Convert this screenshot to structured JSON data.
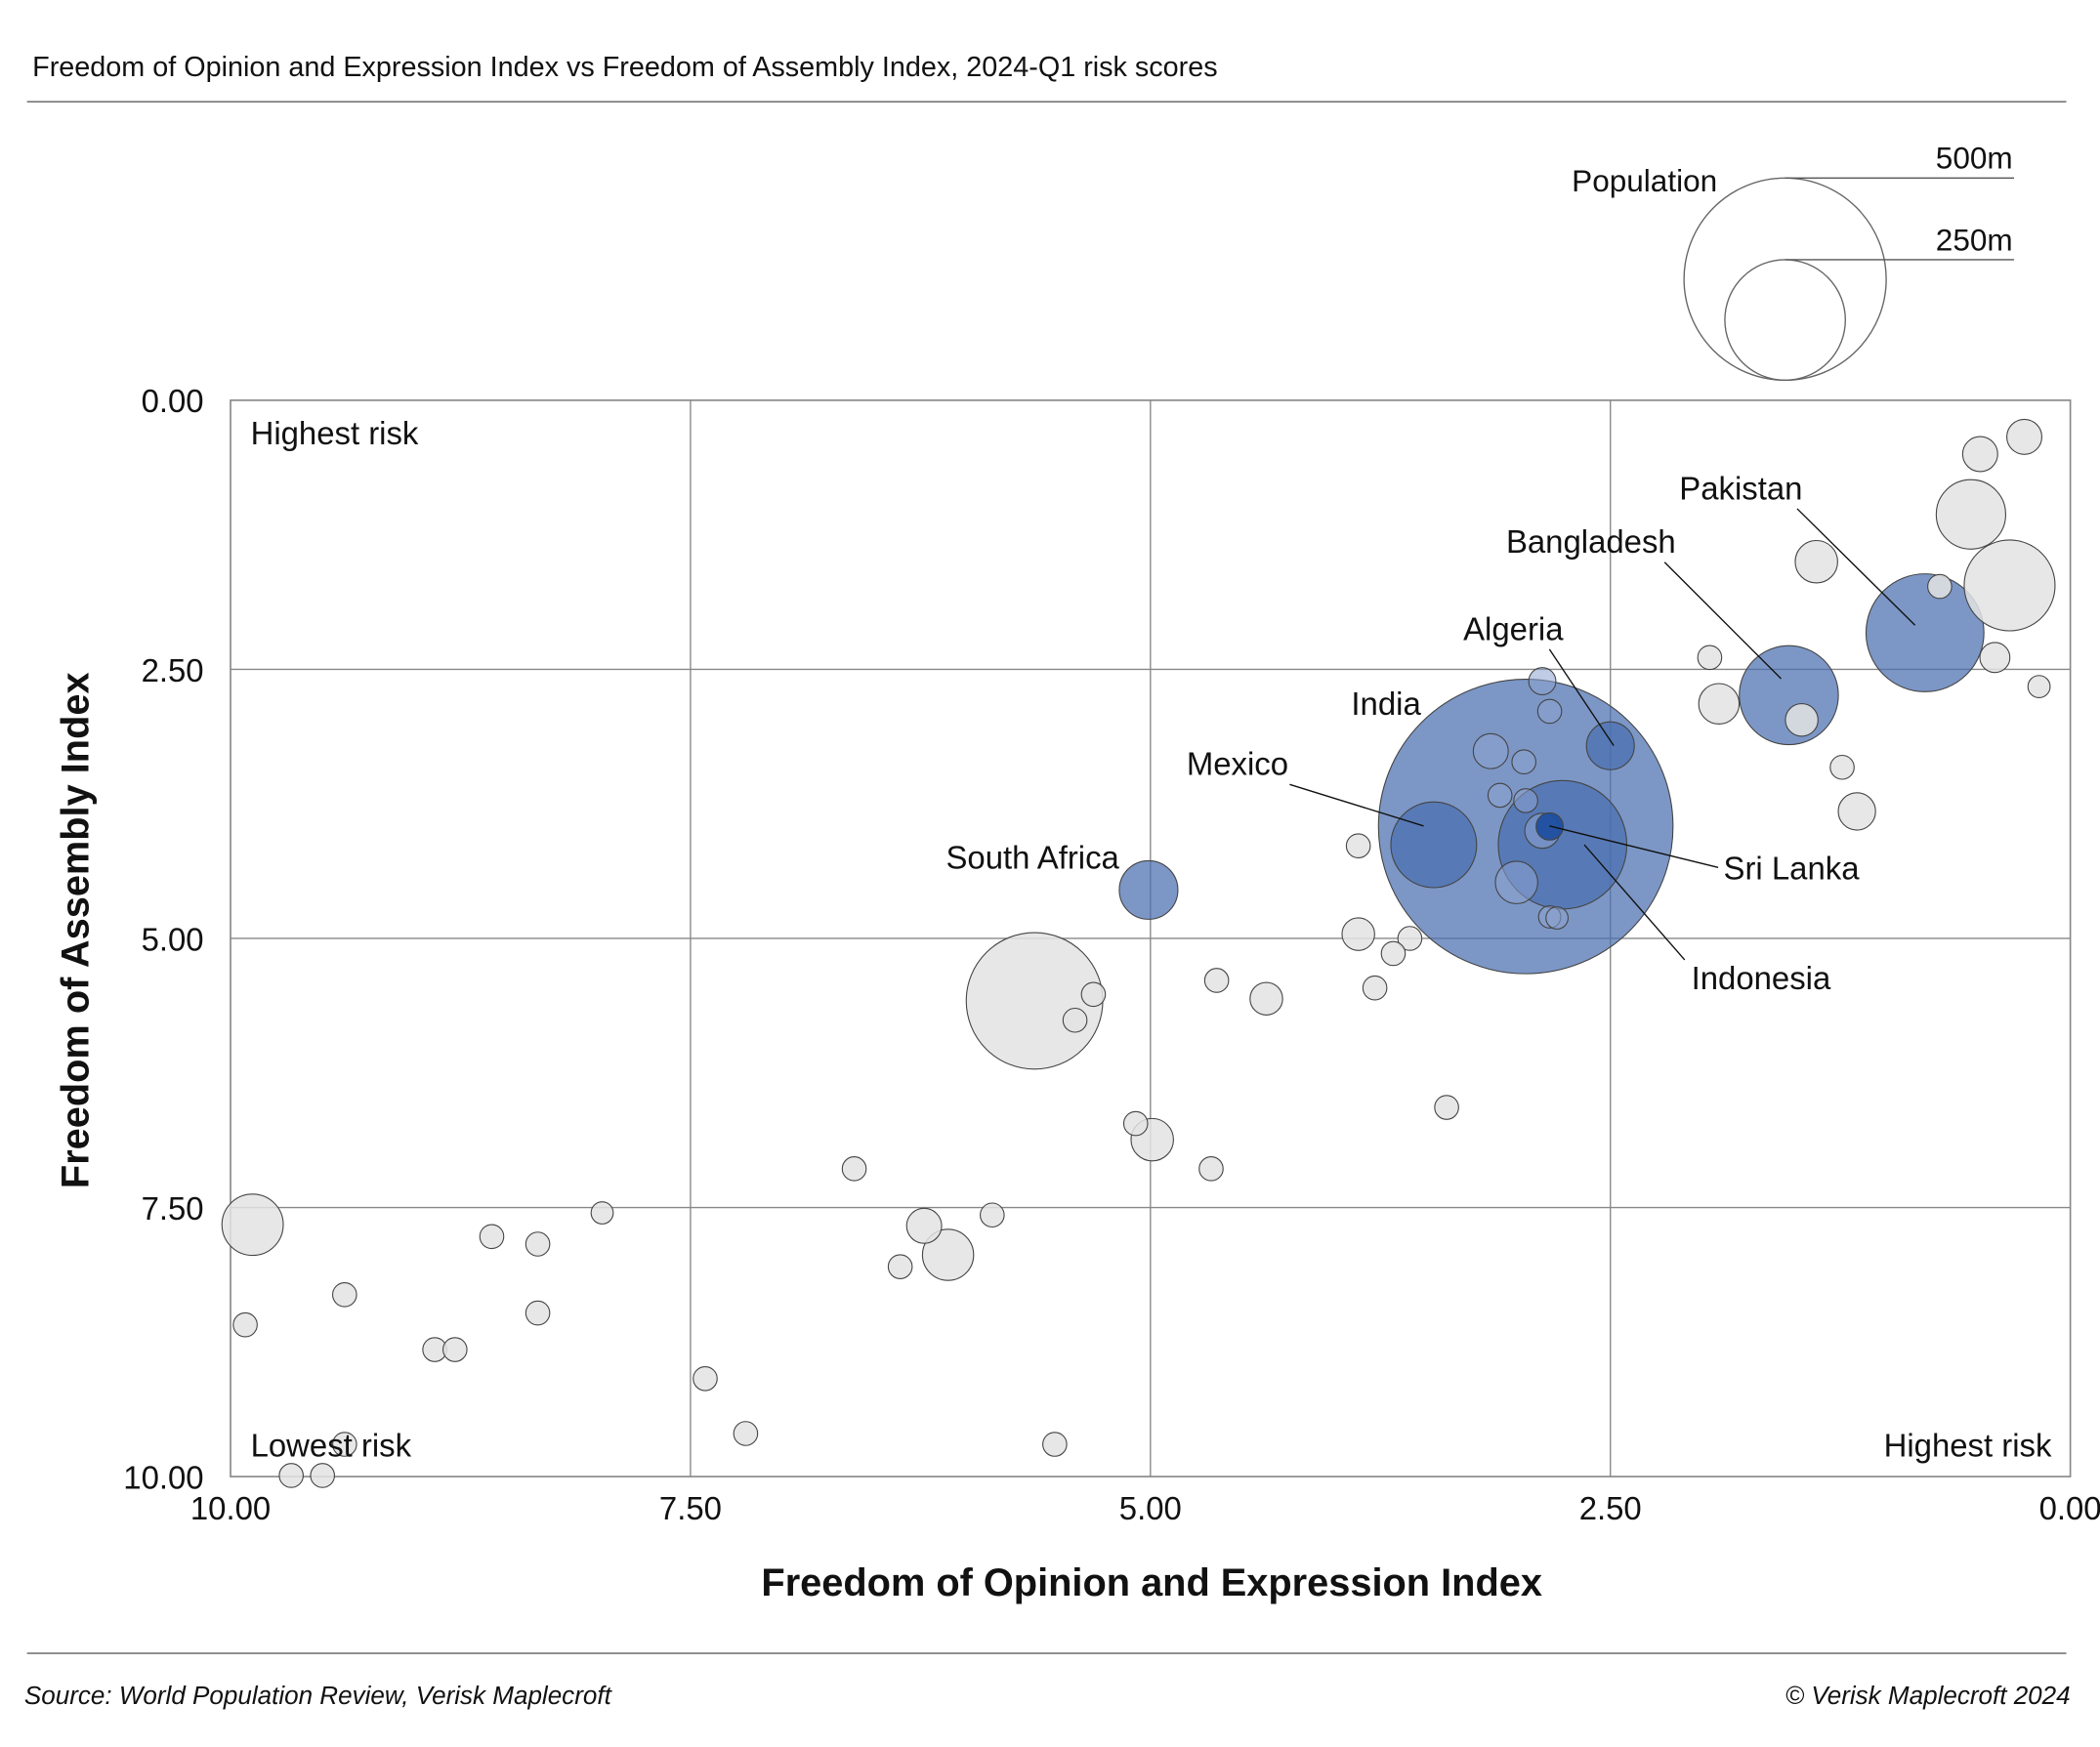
{
  "title": "Freedom of Opinion and Expression Index vs Freedom of Assembly Index, 2024-Q1 risk scores",
  "source": "Source: World Population Review, Verisk Maplecroft",
  "copyright": "© Verisk Maplecroft 2024",
  "legend": {
    "title": "Population",
    "sizes": [
      {
        "label": "500m",
        "value": 500
      },
      {
        "label": "250m",
        "value": 250
      }
    ]
  },
  "colors": {
    "highlight": "#4a6fb0",
    "sri_lanka": "#1f4fa0",
    "other": "#e3e3e3",
    "stroke": "#444444",
    "grid": "#888888"
  },
  "chart_data": {
    "type": "scatter",
    "bubble": true,
    "xlabel": "Freedom of Opinion and Expression Index",
    "ylabel": "Freedom of Assembly Index",
    "xlim": [
      10,
      0
    ],
    "ylim": [
      0,
      10
    ],
    "x_reversed": true,
    "y_reversed": true,
    "xticks": [
      "10.00",
      "7.50",
      "5.00",
      "2.50",
      "0.00"
    ],
    "yticks": [
      "0.00",
      "2.50",
      "5.00",
      "7.50",
      "10.00"
    ],
    "grid": true,
    "size_unit": "population (millions)",
    "annotations": {
      "top_left": "Highest risk",
      "bottom_left": "Lowest risk",
      "bottom_right": "Highest risk"
    },
    "highlighted": [
      {
        "name": "India",
        "x": 2.96,
        "y": 3.96,
        "pop": 1061
      },
      {
        "name": "Indonesia",
        "x": 2.76,
        "y": 4.13,
        "pop": 202
      },
      {
        "name": "Pakistan",
        "x": 0.79,
        "y": 2.16,
        "pop": 170
      },
      {
        "name": "Bangladesh",
        "x": 1.53,
        "y": 2.74,
        "pop": 120
      },
      {
        "name": "Mexico",
        "x": 3.46,
        "y": 4.13,
        "pop": 90
      },
      {
        "name": "South Africa",
        "x": 5.01,
        "y": 4.55,
        "pop": 42
      },
      {
        "name": "Algeria",
        "x": 2.5,
        "y": 3.21,
        "pop": 28
      },
      {
        "name": "Sri Lanka",
        "x": 2.83,
        "y": 3.96,
        "pop": 9
      }
    ],
    "others": [
      {
        "x": 0.25,
        "y": 0.34,
        "pop": 15
      },
      {
        "x": 0.49,
        "y": 0.5,
        "pop": 15
      },
      {
        "x": 0.54,
        "y": 1.06,
        "pop": 59
      },
      {
        "x": 0.33,
        "y": 1.72,
        "pop": 101
      },
      {
        "x": 1.38,
        "y": 1.5,
        "pop": 22
      },
      {
        "x": 0.71,
        "y": 1.73,
        "pop": 7
      },
      {
        "x": 1.96,
        "y": 2.39,
        "pop": 7
      },
      {
        "x": 0.41,
        "y": 2.39,
        "pop": 11
      },
      {
        "x": 0.17,
        "y": 2.66,
        "pop": 6
      },
      {
        "x": 1.91,
        "y": 2.82,
        "pop": 20
      },
      {
        "x": 1.46,
        "y": 2.97,
        "pop": 13
      },
      {
        "x": 1.24,
        "y": 3.41,
        "pop": 7
      },
      {
        "x": 1.16,
        "y": 3.82,
        "pop": 17
      },
      {
        "x": 3.87,
        "y": 4.14,
        "pop": 7
      },
      {
        "x": 3.87,
        "y": 4.96,
        "pop": 13
      },
      {
        "x": 3.59,
        "y": 5.0,
        "pop": 7
      },
      {
        "x": 3.68,
        "y": 5.14,
        "pop": 7
      },
      {
        "x": 3.78,
        "y": 5.46,
        "pop": 7
      },
      {
        "x": 4.64,
        "y": 5.39,
        "pop": 7
      },
      {
        "x": 4.37,
        "y": 5.56,
        "pop": 13
      },
      {
        "x": 5.63,
        "y": 5.58,
        "pop": 228
      },
      {
        "x": 5.31,
        "y": 5.52,
        "pop": 7
      },
      {
        "x": 5.41,
        "y": 5.76,
        "pop": 7
      },
      {
        "x": 3.39,
        "y": 6.57,
        "pop": 7
      },
      {
        "x": 5.08,
        "y": 6.72,
        "pop": 7
      },
      {
        "x": 4.99,
        "y": 6.87,
        "pop": 22
      },
      {
        "x": 6.61,
        "y": 7.14,
        "pop": 7
      },
      {
        "x": 4.67,
        "y": 7.14,
        "pop": 7
      },
      {
        "x": 9.88,
        "y": 7.66,
        "pop": 46
      },
      {
        "x": 7.98,
        "y": 7.55,
        "pop": 6
      },
      {
        "x": 5.86,
        "y": 7.57,
        "pop": 7
      },
      {
        "x": 6.23,
        "y": 7.67,
        "pop": 15
      },
      {
        "x": 6.1,
        "y": 7.94,
        "pop": 32
      },
      {
        "x": 8.58,
        "y": 7.77,
        "pop": 7
      },
      {
        "x": 8.33,
        "y": 7.84,
        "pop": 7
      },
      {
        "x": 6.36,
        "y": 8.05,
        "pop": 7
      },
      {
        "x": 9.38,
        "y": 8.31,
        "pop": 7
      },
      {
        "x": 8.33,
        "y": 8.48,
        "pop": 7
      },
      {
        "x": 9.92,
        "y": 8.59,
        "pop": 7
      },
      {
        "x": 8.89,
        "y": 8.82,
        "pop": 7
      },
      {
        "x": 8.78,
        "y": 8.82,
        "pop": 7
      },
      {
        "x": 7.42,
        "y": 9.09,
        "pop": 7
      },
      {
        "x": 7.2,
        "y": 9.6,
        "pop": 7
      },
      {
        "x": 9.38,
        "y": 9.7,
        "pop": 7
      },
      {
        "x": 5.52,
        "y": 9.7,
        "pop": 7
      },
      {
        "x": 9.67,
        "y": 9.99,
        "pop": 7
      },
      {
        "x": 9.5,
        "y": 9.99,
        "pop": 7
      },
      {
        "x": 2.87,
        "y": 2.61,
        "pop": 9
      },
      {
        "x": 2.83,
        "y": 2.89,
        "pop": 7
      },
      {
        "x": 3.15,
        "y": 3.26,
        "pop": 15
      },
      {
        "x": 2.97,
        "y": 3.36,
        "pop": 7
      },
      {
        "x": 3.1,
        "y": 3.67,
        "pop": 7
      },
      {
        "x": 2.96,
        "y": 3.72,
        "pop": 7
      },
      {
        "x": 2.87,
        "y": 4.0,
        "pop": 15
      },
      {
        "x": 3.01,
        "y": 4.48,
        "pop": 22
      },
      {
        "x": 2.83,
        "y": 4.8,
        "pop": 6
      },
      {
        "x": 2.79,
        "y": 4.81,
        "pop": 6
      }
    ]
  }
}
